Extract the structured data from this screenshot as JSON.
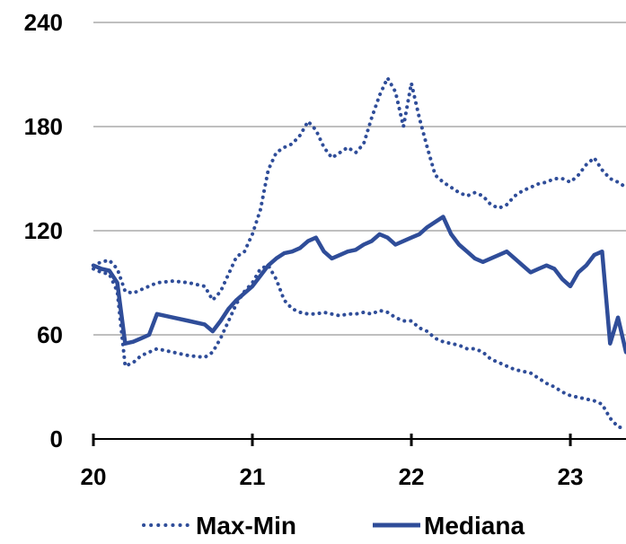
{
  "chart_data": {
    "type": "line",
    "xlabel": "",
    "ylabel": "",
    "xlim": [
      20,
      23.35
    ],
    "ylim": [
      0,
      240
    ],
    "yticks": [
      0,
      60,
      120,
      180,
      240
    ],
    "xticks": [
      20,
      21,
      22,
      23
    ],
    "xtick_labels": [
      "20",
      "21",
      "22",
      "23"
    ],
    "ytick_labels": [
      "0",
      "60",
      "120",
      "180",
      "240"
    ],
    "grid": "horizontal",
    "legend_position": "bottom",
    "colors": {
      "series": "#2F4D99",
      "grid": "#BFBFBF",
      "axis": "#000000"
    },
    "series": [
      {
        "name": "Max-Min",
        "style": "dotted",
        "x": [
          20.0,
          20.05,
          20.1,
          20.15,
          20.2,
          20.25,
          20.3,
          20.4,
          20.5,
          20.6,
          20.7,
          20.75,
          20.8,
          20.85,
          20.9,
          20.95,
          21.0,
          21.05,
          21.1,
          21.15,
          21.2,
          21.25,
          21.3,
          21.35,
          21.4,
          21.45,
          21.5,
          21.55,
          21.6,
          21.65,
          21.7,
          21.75,
          21.8,
          21.85,
          21.9,
          21.95,
          22.0,
          22.05,
          22.1,
          22.15,
          22.2,
          22.25,
          22.3,
          22.35,
          22.4,
          22.45,
          22.5,
          22.55,
          22.6,
          22.65,
          22.7,
          22.75,
          22.8,
          22.85,
          22.9,
          22.95,
          23.0,
          23.05,
          23.1,
          23.15,
          23.2,
          23.25,
          23.3,
          23.35
        ],
        "values": [
          100,
          102,
          103,
          98,
          85,
          84,
          86,
          90,
          91,
          90,
          88,
          80,
          85,
          95,
          105,
          108,
          118,
          132,
          155,
          165,
          168,
          170,
          175,
          183,
          178,
          168,
          162,
          165,
          168,
          165,
          170,
          185,
          198,
          208,
          200,
          180,
          205,
          185,
          168,
          152,
          148,
          145,
          142,
          140,
          142,
          140,
          135,
          133,
          135,
          140,
          143,
          145,
          147,
          148,
          150,
          150,
          148,
          152,
          158,
          162,
          155,
          150,
          148,
          145
        ]
      },
      {
        "name": "",
        "style": "dotted",
        "x": [
          20.0,
          20.05,
          20.1,
          20.15,
          20.2,
          20.25,
          20.3,
          20.4,
          20.5,
          20.6,
          20.7,
          20.75,
          20.8,
          20.85,
          20.9,
          20.95,
          21.0,
          21.05,
          21.1,
          21.15,
          21.2,
          21.25,
          21.3,
          21.35,
          21.4,
          21.45,
          21.5,
          21.55,
          21.6,
          21.65,
          21.7,
          21.75,
          21.8,
          21.85,
          21.9,
          21.95,
          22.0,
          22.05,
          22.1,
          22.15,
          22.2,
          22.25,
          22.3,
          22.35,
          22.4,
          22.45,
          22.5,
          22.55,
          22.6,
          22.65,
          22.7,
          22.75,
          22.8,
          22.85,
          22.9,
          22.95,
          23.0,
          23.05,
          23.1,
          23.15,
          23.2,
          23.25,
          23.3,
          23.35
        ],
        "values": [
          98,
          96,
          95,
          85,
          42,
          44,
          48,
          52,
          50,
          48,
          47,
          50,
          58,
          68,
          78,
          85,
          90,
          98,
          100,
          92,
          80,
          75,
          73,
          72,
          72,
          73,
          72,
          71,
          72,
          72,
          73,
          72,
          74,
          73,
          70,
          68,
          68,
          64,
          62,
          58,
          56,
          55,
          54,
          52,
          52,
          50,
          46,
          44,
          42,
          40,
          39,
          38,
          35,
          32,
          30,
          27,
          25,
          24,
          23,
          22,
          20,
          12,
          7,
          6
        ]
      },
      {
        "name": "Mediana",
        "style": "solid",
        "x": [
          20.0,
          20.05,
          20.1,
          20.15,
          20.2,
          20.25,
          20.3,
          20.35,
          20.4,
          20.5,
          20.6,
          20.7,
          20.75,
          20.8,
          20.85,
          20.9,
          20.95,
          21.0,
          21.05,
          21.1,
          21.15,
          21.2,
          21.25,
          21.3,
          21.35,
          21.4,
          21.45,
          21.5,
          21.55,
          21.6,
          21.65,
          21.7,
          21.75,
          21.8,
          21.85,
          21.9,
          21.95,
          22.0,
          22.05,
          22.1,
          22.15,
          22.2,
          22.25,
          22.3,
          22.35,
          22.4,
          22.45,
          22.5,
          22.55,
          22.6,
          22.65,
          22.7,
          22.75,
          22.8,
          22.85,
          22.9,
          22.95,
          23.0,
          23.05,
          23.1,
          23.15,
          23.2,
          23.25,
          23.3,
          23.35
        ],
        "values": [
          100,
          98,
          97,
          90,
          55,
          56,
          58,
          60,
          72,
          70,
          68,
          66,
          62,
          68,
          75,
          80,
          84,
          88,
          94,
          100,
          104,
          107,
          108,
          110,
          114,
          116,
          108,
          104,
          106,
          108,
          109,
          112,
          114,
          118,
          116,
          112,
          114,
          116,
          118,
          122,
          125,
          128,
          118,
          112,
          108,
          104,
          102,
          104,
          106,
          108,
          104,
          100,
          96,
          98,
          100,
          98,
          92,
          88,
          96,
          100,
          106,
          108,
          55,
          70,
          50
        ]
      }
    ]
  }
}
